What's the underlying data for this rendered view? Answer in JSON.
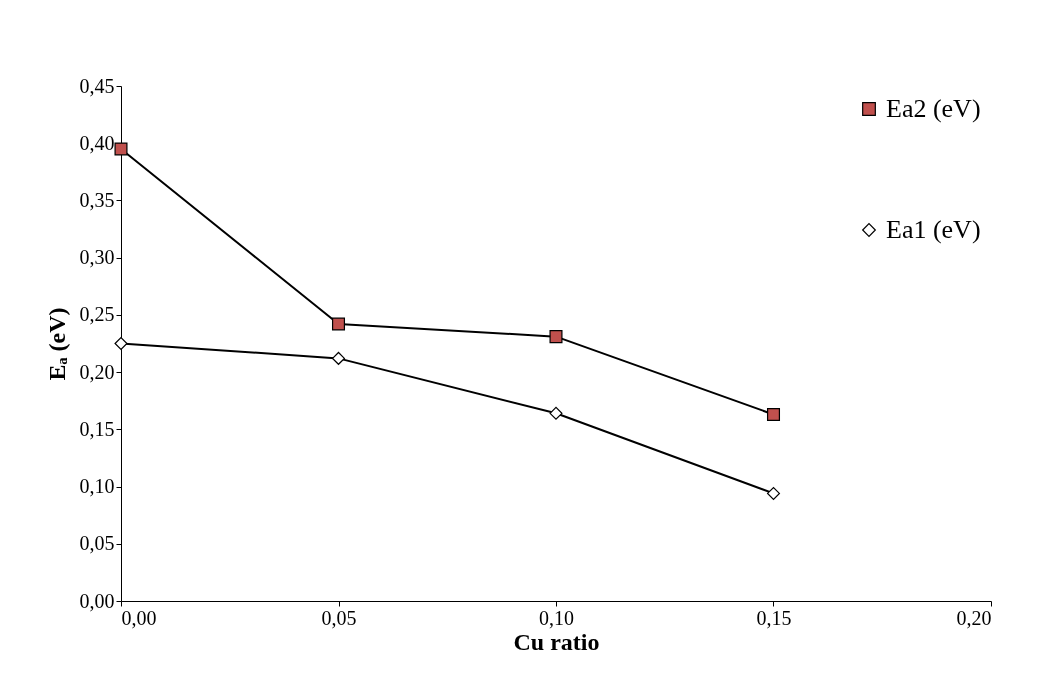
{
  "chart_data": {
    "type": "line",
    "xlabel": "Cu ratio",
    "ylabel": "Eₐ (eV)",
    "x": [
      0,
      0.05,
      0.1,
      0.15
    ],
    "series": [
      {
        "name": "Ea2 (eV)",
        "color": "#c0504d",
        "marker": "square",
        "values": [
          0.395,
          0.242,
          0.231,
          0.163
        ]
      },
      {
        "name": "Ea1 (eV)",
        "color": "#ffffff",
        "marker": "diamond",
        "values": [
          0.225,
          0.212,
          0.164,
          0.094
        ]
      }
    ],
    "xlim": [
      0,
      0.2
    ],
    "xticks": [
      {
        "value": 0,
        "label": "0,00"
      },
      {
        "value": 0.05,
        "label": "0,05"
      },
      {
        "value": 0.1,
        "label": "0,10"
      },
      {
        "value": 0.15,
        "label": "0,15"
      },
      {
        "value": 0.2,
        "label": "0,20"
      }
    ],
    "ylim": [
      0,
      0.45
    ],
    "yticks": [
      {
        "value": 0,
        "label": "0,00"
      },
      {
        "value": 0.05,
        "label": "0,05"
      },
      {
        "value": 0.1,
        "label": "0,10"
      },
      {
        "value": 0.15,
        "label": "0,15"
      },
      {
        "value": 0.2,
        "label": "0,20"
      },
      {
        "value": 0.25,
        "label": "0,25"
      },
      {
        "value": 0.3,
        "label": "0,30"
      },
      {
        "value": 0.35,
        "label": "0,35"
      },
      {
        "value": 0.4,
        "label": "0,40"
      },
      {
        "value": 0.45,
        "label": "0,45"
      }
    ],
    "grid": false,
    "legend": "top right",
    "line_style": "solid"
  }
}
